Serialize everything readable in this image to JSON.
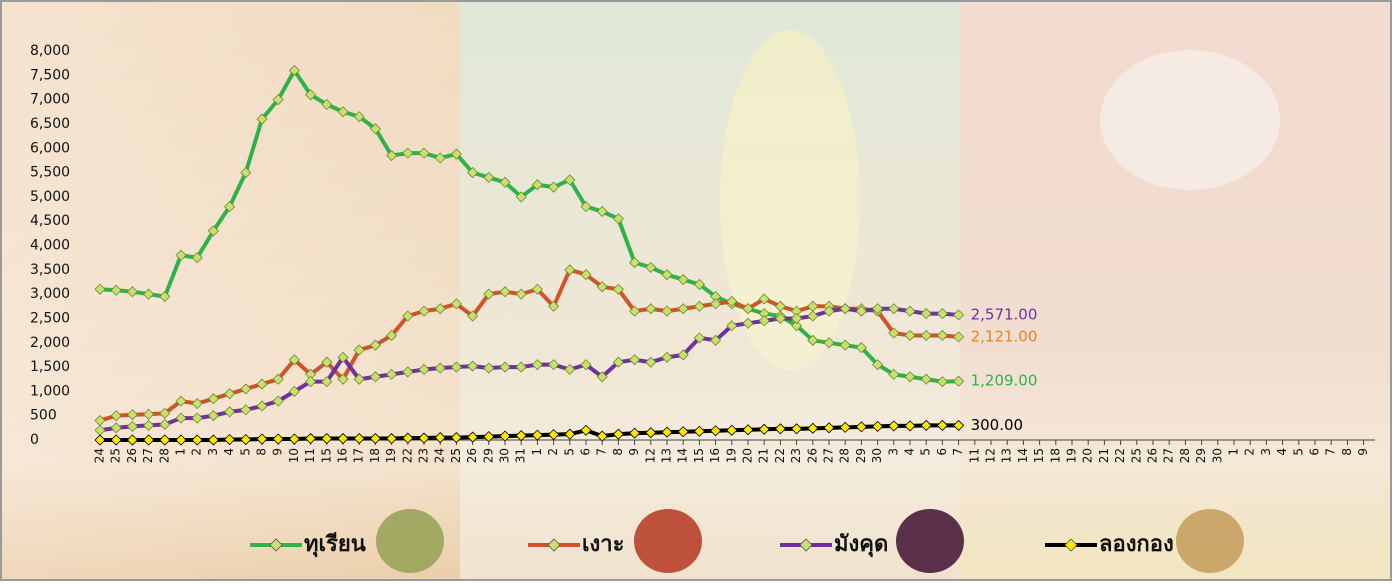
{
  "chart_data": {
    "type": "line",
    "categories": [
      "24",
      "25",
      "26",
      "27",
      "28",
      "1",
      "2",
      "3",
      "4",
      "5",
      "8",
      "9",
      "10",
      "11",
      "15",
      "16",
      "17",
      "18",
      "19",
      "22",
      "23",
      "24",
      "25",
      "26",
      "29",
      "30",
      "31",
      "1",
      "2",
      "5",
      "6",
      "7",
      "8",
      "9",
      "12",
      "13",
      "14",
      "15",
      "16",
      "19",
      "20",
      "21",
      "22",
      "23",
      "26",
      "27",
      "28",
      "29",
      "30",
      "3",
      "4",
      "5",
      "6",
      "7",
      "11",
      "12",
      "13",
      "14",
      "15",
      "18",
      "19",
      "20",
      "21",
      "22",
      "25",
      "26",
      "27",
      "28",
      "29",
      "30",
      "1",
      "2",
      "3",
      "4",
      "5",
      "6",
      "7",
      "8",
      "9"
    ],
    "series": [
      {
        "name": "ทุเรียน",
        "color": "#2db34a",
        "marker": "#c9e070",
        "label_color": "#2db34a",
        "values": [
          3100,
          3080,
          3050,
          3000,
          2950,
          3800,
          3750,
          4300,
          4800,
          5500,
          6600,
          7000,
          7600,
          7100,
          6900,
          6750,
          6650,
          6400,
          5850,
          5900,
          5900,
          5800,
          5880,
          5500,
          5400,
          5300,
          5000,
          5250,
          5200,
          5350,
          4800,
          4700,
          4550,
          3650,
          3550,
          3400,
          3300,
          3200,
          2950,
          2800,
          2700,
          2600,
          2550,
          2350,
          2050,
          2000,
          1950,
          1900,
          1550,
          1350,
          1300,
          1250,
          1200,
          1209,
          null,
          null,
          null,
          null,
          null,
          null,
          null,
          null,
          null,
          null,
          null,
          null,
          null,
          null,
          null,
          null,
          null,
          null,
          null,
          null,
          null,
          null,
          null,
          null,
          null
        ],
        "value_labels": [
          null,
          null,
          null,
          null,
          null,
          null,
          null,
          null,
          null,
          null,
          null,
          null,
          null,
          null,
          null,
          null,
          null,
          null,
          null,
          null,
          null,
          null,
          null,
          null,
          null,
          null,
          null,
          null,
          null,
          null,
          null,
          null,
          null,
          null,
          null,
          null,
          null,
          null,
          null,
          null,
          null,
          null,
          null,
          null,
          null,
          null,
          null,
          null,
          null,
          null,
          null,
          null,
          null,
          "1,209.00",
          null,
          null,
          null,
          null,
          null,
          null,
          null,
          null,
          null,
          null,
          null,
          null,
          null,
          null,
          null,
          null,
          null,
          null,
          null,
          null,
          null,
          null,
          null,
          null,
          null
        ]
      },
      {
        "name": "เงาะ",
        "color": "#d2522a",
        "marker": "#c9e070",
        "label_color": "#e8841e",
        "values": [
          400,
          500,
          520,
          530,
          550,
          800,
          750,
          850,
          950,
          1050,
          1150,
          1250,
          1650,
          1350,
          1600,
          1250,
          1850,
          1950,
          2150,
          2550,
          2650,
          2700,
          2800,
          2550,
          3000,
          3050,
          3000,
          3100,
          2750,
          3500,
          3400,
          3150,
          3100,
          2650,
          2700,
          2650,
          2700,
          2750,
          2800,
          2850,
          2700,
          2900,
          2750,
          2650,
          2750,
          2750,
          2700,
          2700,
          2650,
          2200,
          2150,
          2150,
          2150,
          2121,
          null,
          null,
          null,
          null,
          null,
          null,
          null,
          null,
          null,
          null,
          null,
          null,
          null,
          null,
          null,
          null,
          null,
          null,
          null,
          null,
          null,
          null,
          null,
          null,
          null
        ],
        "value_labels": [
          null,
          null,
          null,
          null,
          null,
          null,
          null,
          null,
          null,
          null,
          null,
          null,
          null,
          null,
          null,
          null,
          null,
          null,
          null,
          null,
          null,
          null,
          null,
          null,
          null,
          null,
          null,
          null,
          null,
          null,
          null,
          null,
          null,
          null,
          null,
          null,
          null,
          null,
          null,
          null,
          null,
          null,
          null,
          null,
          null,
          null,
          null,
          null,
          null,
          null,
          null,
          null,
          null,
          "2,121.00",
          null,
          null,
          null,
          null,
          null,
          null,
          null,
          null,
          null,
          null,
          null,
          null,
          null,
          null,
          null,
          null,
          null,
          null,
          null,
          null,
          null,
          null,
          null,
          null,
          null
        ]
      },
      {
        "name": "มังคุด",
        "color": "#7030a0",
        "marker": "#c9e070",
        "label_color": "#7030a0",
        "values": [
          200,
          250,
          280,
          300,
          320,
          450,
          450,
          500,
          580,
          620,
          700,
          800,
          1000,
          1200,
          1200,
          1700,
          1250,
          1300,
          1350,
          1400,
          1450,
          1480,
          1500,
          1520,
          1480,
          1500,
          1500,
          1550,
          1550,
          1450,
          1550,
          1300,
          1600,
          1650,
          1600,
          1700,
          1750,
          2100,
          2050,
          2350,
          2400,
          2450,
          2500,
          2500,
          2550,
          2650,
          2700,
          2650,
          2700,
          2700,
          2650,
          2600,
          2600,
          2571,
          null,
          null,
          null,
          null,
          null,
          null,
          null,
          null,
          null,
          null,
          null,
          null,
          null,
          null,
          null,
          null,
          null,
          null,
          null,
          null,
          null,
          null,
          null,
          null,
          null
        ],
        "value_labels": [
          null,
          null,
          null,
          null,
          null,
          null,
          null,
          null,
          null,
          null,
          null,
          null,
          null,
          null,
          null,
          null,
          null,
          null,
          null,
          null,
          null,
          null,
          null,
          null,
          null,
          null,
          null,
          null,
          null,
          null,
          null,
          null,
          null,
          null,
          null,
          null,
          null,
          null,
          null,
          null,
          null,
          null,
          null,
          null,
          null,
          null,
          null,
          null,
          null,
          null,
          null,
          null,
          null,
          "2,571.00",
          null,
          null,
          null,
          null,
          null,
          null,
          null,
          null,
          null,
          null,
          null,
          null,
          null,
          null,
          null,
          null,
          null,
          null,
          null,
          null,
          null,
          null,
          null,
          null,
          null
        ]
      },
      {
        "name": "ลองกอง",
        "color": "#000000",
        "marker": "#ffe600",
        "label_color": "#000000",
        "values": [
          0,
          0,
          0,
          0,
          0,
          0,
          0,
          0,
          10,
          10,
          20,
          20,
          20,
          30,
          30,
          30,
          30,
          30,
          30,
          40,
          40,
          50,
          50,
          60,
          70,
          80,
          90,
          100,
          110,
          120,
          200,
          80,
          120,
          140,
          150,
          160,
          170,
          180,
          190,
          200,
          210,
          220,
          230,
          230,
          240,
          250,
          260,
          270,
          280,
          290,
          290,
          300,
          300,
          300,
          null,
          null,
          null,
          null,
          null,
          null,
          null,
          null,
          null,
          null,
          null,
          null,
          null,
          null,
          null,
          null,
          null,
          null,
          null,
          null,
          null,
          null,
          null,
          null,
          null
        ],
        "value_labels": [
          null,
          null,
          null,
          null,
          null,
          null,
          null,
          null,
          null,
          null,
          null,
          null,
          null,
          null,
          null,
          null,
          null,
          null,
          null,
          null,
          null,
          null,
          null,
          null,
          null,
          null,
          null,
          null,
          null,
          null,
          null,
          null,
          null,
          null,
          null,
          null,
          null,
          null,
          null,
          null,
          null,
          null,
          null,
          null,
          null,
          null,
          null,
          null,
          null,
          null,
          null,
          null,
          null,
          "300.00",
          null,
          null,
          null,
          null,
          null,
          null,
          null,
          null,
          null,
          null,
          null,
          null,
          null,
          null,
          null,
          null,
          null,
          null,
          null,
          null,
          null,
          null,
          null,
          null,
          null
        ]
      }
    ],
    "ylim": [
      0,
      8000
    ],
    "yticks": [
      0,
      500,
      {
        "value": 1000,
        "label": "1,000"
      },
      {
        "value": 1500,
        "label": "1,500"
      },
      {
        "value": 2000,
        "label": "2,000"
      },
      {
        "value": 2500,
        "label": "2,500"
      },
      {
        "value": 3000,
        "label": "3,000"
      },
      {
        "value": 3500,
        "label": "3,500"
      },
      {
        "value": 4000,
        "label": "4,000"
      },
      {
        "value": 4500,
        "label": "4,500"
      },
      {
        "value": 5000,
        "label": "5,000"
      },
      {
        "value": 5500,
        "label": "5,500"
      },
      {
        "value": 6000,
        "label": "6,000"
      },
      {
        "value": 6500,
        "label": "6,500"
      },
      {
        "value": 7000,
        "label": "7,000"
      },
      {
        "value": 7500,
        "label": "7,500"
      },
      {
        "value": 8000,
        "label": "8,000"
      }
    ],
    "grid": false,
    "legend": "bottom"
  }
}
